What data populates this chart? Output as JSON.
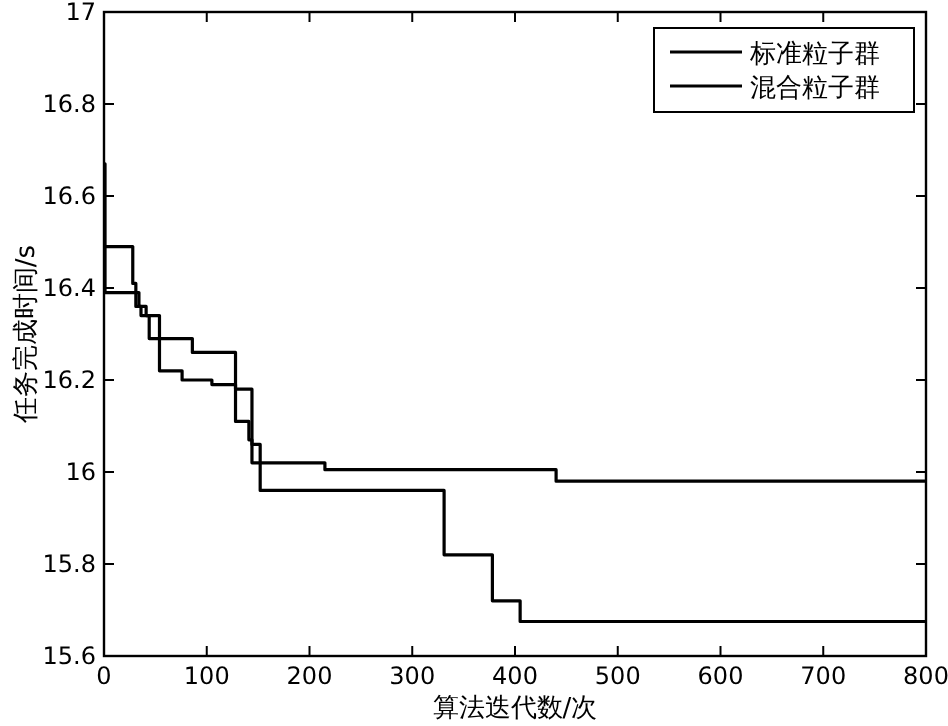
{
  "chart_data": {
    "type": "step",
    "xlabel": "算法迭代数/次",
    "ylabel": "任务完成时间/s",
    "xlim": [
      0,
      800
    ],
    "ylim": [
      15.6,
      17
    ],
    "xticks": [
      0,
      100,
      200,
      300,
      400,
      500,
      600,
      700,
      800
    ],
    "yticks": [
      15.6,
      15.8,
      16,
      16.2,
      16.4,
      16.6,
      16.8,
      17
    ],
    "legend": "top right",
    "grid": false,
    "series": [
      {
        "name": "标准粒子群",
        "color": "#000000",
        "x": [
          0,
          28,
          31,
          36,
          44,
          86,
          128,
          141,
          144,
          215,
          440,
          800
        ],
        "values": [
          16.49,
          16.41,
          16.36,
          16.34,
          16.29,
          16.26,
          16.11,
          16.07,
          16.02,
          16.005,
          15.98,
          15.98
        ]
      },
      {
        "name": "混合粒子群",
        "color": "#000000",
        "x": [
          0,
          1,
          34,
          41,
          54,
          76,
          105,
          128,
          144,
          152,
          331,
          378,
          405,
          800
        ],
        "values": [
          16.67,
          16.39,
          16.36,
          16.34,
          16.22,
          16.2,
          16.19,
          16.18,
          16.06,
          15.96,
          15.82,
          15.72,
          15.675,
          15.675
        ]
      }
    ]
  }
}
